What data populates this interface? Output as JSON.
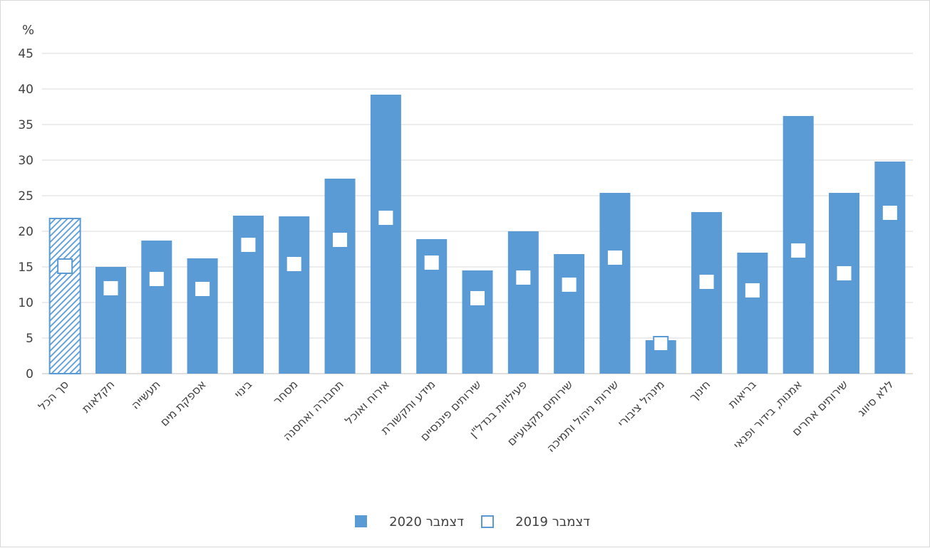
{
  "chart_data": {
    "type": "bar",
    "y_unit_label": "%",
    "ylim": [
      0,
      45
    ],
    "y_ticks": [
      "0",
      "5",
      "10",
      "15",
      "20",
      "25",
      "30",
      "35",
      "40",
      "45"
    ],
    "grid": true,
    "legend_position": "bottom",
    "categories": [
      "סך הכל",
      "חקלאות",
      "תעשייה",
      "אספקת מים",
      "בינוי",
      "מסחר",
      "תחבורה ואחסנה",
      "אירוח ואוכל",
      "מידע ותקשורת",
      "שירותים פיננסיים",
      "פעילויות בנדל\"ן",
      "שירותים מקצועיים",
      "שירותי ניהול ותמיכה",
      "מינהל ציבורי",
      "חינוך",
      "בריאות",
      "אמנות, בידור ופנאי",
      "שירותים אחרים",
      "ללא סיווג"
    ],
    "series": [
      {
        "name": "דצמבר 2020",
        "kind": "bar",
        "color": "#5b9bd5",
        "values": [
          21.8,
          15.0,
          18.7,
          16.2,
          22.2,
          22.1,
          27.4,
          39.2,
          18.9,
          14.5,
          20.0,
          16.8,
          25.4,
          4.7,
          22.7,
          17.0,
          36.2,
          25.4,
          29.8
        ]
      },
      {
        "name": "דצמבר 2019",
        "kind": "marker",
        "color": "#5b9bd5",
        "values": [
          15.1,
          12.0,
          13.3,
          11.9,
          18.1,
          15.4,
          18.8,
          21.9,
          15.6,
          10.6,
          13.5,
          12.5,
          16.3,
          4.2,
          12.9,
          11.7,
          17.3,
          14.1,
          22.6
        ]
      }
    ],
    "legend": [
      {
        "label": "דצמבר 2020",
        "style": "filled"
      },
      {
        "label": "דצמבר 2019",
        "style": "hollow"
      }
    ]
  }
}
